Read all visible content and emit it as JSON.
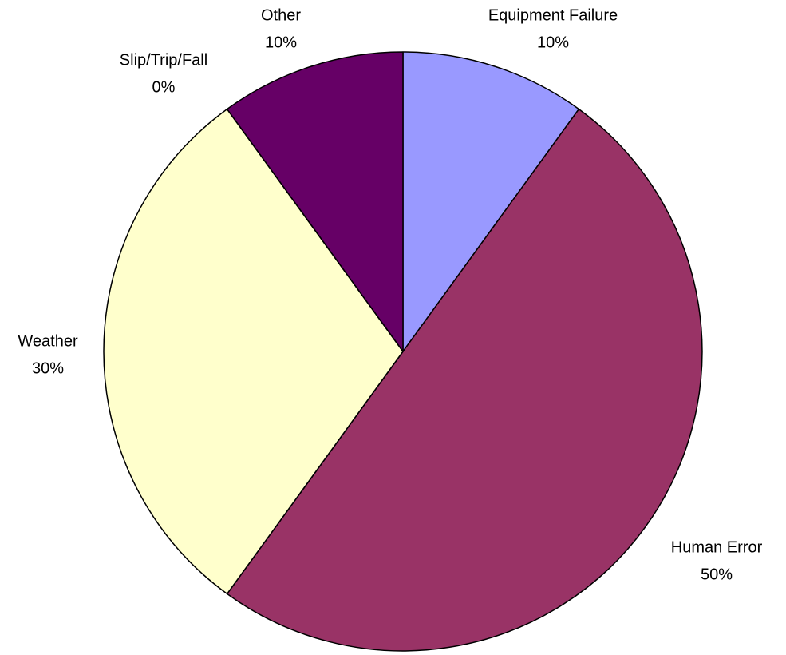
{
  "chart_data": {
    "type": "pie",
    "categories": [
      "Equipment Failure",
      "Human Error",
      null,
      "Weather",
      "Slip/Trip/Fall",
      "Other"
    ],
    "values": [
      10,
      50,
      0,
      30,
      0,
      10
    ],
    "value_labels": [
      "10%",
      "50%",
      null,
      "30%",
      "0%",
      "10%"
    ],
    "colors": [
      "#9999ff",
      "#993366",
      "#ccffff",
      "#ffffcc",
      "#ff8080",
      "#660066"
    ]
  }
}
